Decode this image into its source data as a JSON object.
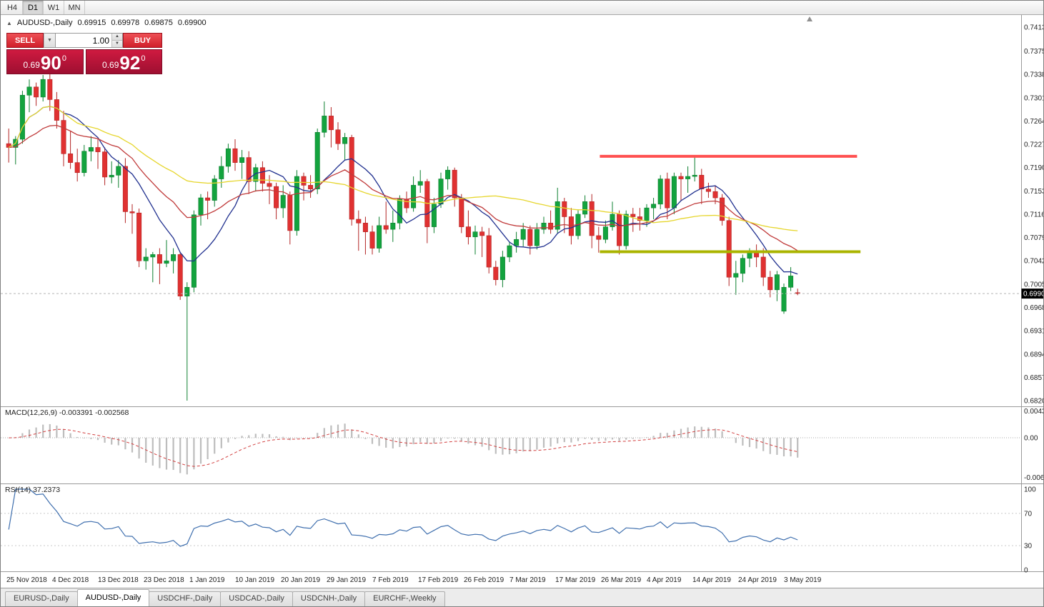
{
  "toolbar": {
    "timeframes": [
      {
        "label": "H4",
        "active": false
      },
      {
        "label": "D1",
        "active": true
      },
      {
        "label": "W1",
        "active": false
      },
      {
        "label": "MN",
        "active": false
      }
    ]
  },
  "chart": {
    "header": {
      "collapse_icon": "▲",
      "symbol_label": "AUDUSD-,Daily",
      "open": "0.69915",
      "high": "0.69978",
      "low": "0.69875",
      "close": "0.69900"
    },
    "trade_panel": {
      "sell_label": "SELL",
      "buy_label": "BUY",
      "volume": "1.00",
      "sell_price": {
        "prefix": "0.69",
        "pips": "90",
        "point": "0"
      },
      "buy_price": {
        "prefix": "0.69",
        "pips": "92",
        "point": "0"
      },
      "accent_color": "#c4163c"
    },
    "current_price": "0.69900"
  },
  "chart_data": {
    "type": "candlestick",
    "symbol": "AUDUSD",
    "timeframe": "Daily",
    "price_axis_labels": [
      "0.74130",
      "0.73750",
      "0.73380",
      "0.73010",
      "0.72640",
      "0.72270",
      "0.71900",
      "0.71530",
      "0.71160",
      "0.70790",
      "0.70420",
      "0.70050",
      "0.69680",
      "0.69310",
      "0.68940",
      "0.68570",
      "0.68200"
    ],
    "date_labels": [
      "25 Nov 2018",
      "4 Dec 2018",
      "13 Dec 2018",
      "23 Dec 2018",
      "1 Jan 2019",
      "10 Jan 2019",
      "20 Jan 2019",
      "29 Jan 2019",
      "7 Feb 2019",
      "17 Feb 2019",
      "26 Feb 2019",
      "7 Mar 2019",
      "17 Mar 2019",
      "26 Mar 2019",
      "4 Apr 2019",
      "14 Apr 2019",
      "24 Apr 2019",
      "3 May 2019"
    ],
    "candles": [
      [
        0.7228,
        0.7252,
        0.7198,
        0.7222
      ],
      [
        0.7222,
        0.724,
        0.7195,
        0.7235
      ],
      [
        0.7235,
        0.7312,
        0.7228,
        0.7305
      ],
      [
        0.7305,
        0.733,
        0.7278,
        0.7318
      ],
      [
        0.7318,
        0.7325,
        0.7288,
        0.7302
      ],
      [
        0.7302,
        0.7337,
        0.7295,
        0.733
      ],
      [
        0.733,
        0.734,
        0.728,
        0.7298
      ],
      [
        0.7298,
        0.731,
        0.7252,
        0.7265
      ],
      [
        0.7265,
        0.728,
        0.7192,
        0.7212
      ],
      [
        0.7212,
        0.7248,
        0.7188,
        0.7198
      ],
      [
        0.7198,
        0.722,
        0.7168,
        0.7182
      ],
      [
        0.7182,
        0.7226,
        0.7176,
        0.7216
      ],
      [
        0.7216,
        0.724,
        0.72,
        0.7222
      ],
      [
        0.7222,
        0.7235,
        0.7188,
        0.7215
      ],
      [
        0.7215,
        0.7222,
        0.7162,
        0.7175
      ],
      [
        0.7175,
        0.72,
        0.7165,
        0.7178
      ],
      [
        0.7178,
        0.7202,
        0.7158,
        0.7192
      ],
      [
        0.7192,
        0.7205,
        0.7102,
        0.712
      ],
      [
        0.712,
        0.7132,
        0.7085,
        0.7118
      ],
      [
        0.7118,
        0.7125,
        0.7032,
        0.7042
      ],
      [
        0.7042,
        0.7062,
        0.7028,
        0.7048
      ],
      [
        0.7048,
        0.7056,
        0.7008,
        0.7052
      ],
      [
        0.7052,
        0.7062,
        0.7005,
        0.7038
      ],
      [
        0.7038,
        0.7075,
        0.7032,
        0.7042
      ],
      [
        0.7042,
        0.7062,
        0.7022,
        0.7052
      ],
      [
        0.7052,
        0.7056,
        0.698,
        0.6986
      ],
      [
        0.6986,
        0.7008,
        0.682,
        0.7
      ],
      [
        0.7,
        0.7122,
        0.6992,
        0.7115
      ],
      [
        0.7115,
        0.7148,
        0.7098,
        0.7142
      ],
      [
        0.7142,
        0.7152,
        0.7108,
        0.7138
      ],
      [
        0.7138,
        0.7178,
        0.7128,
        0.7172
      ],
      [
        0.7172,
        0.7208,
        0.7158,
        0.7192
      ],
      [
        0.7192,
        0.7228,
        0.7182,
        0.722
      ],
      [
        0.722,
        0.7235,
        0.7185,
        0.7198
      ],
      [
        0.7198,
        0.7218,
        0.7172,
        0.7206
      ],
      [
        0.7206,
        0.7216,
        0.7148,
        0.7168
      ],
      [
        0.7168,
        0.7196,
        0.7152,
        0.719
      ],
      [
        0.719,
        0.72,
        0.7152,
        0.7165
      ],
      [
        0.7165,
        0.7178,
        0.7132,
        0.716
      ],
      [
        0.716,
        0.7166,
        0.7108,
        0.7126
      ],
      [
        0.7126,
        0.7162,
        0.711,
        0.7146
      ],
      [
        0.7146,
        0.7152,
        0.7068,
        0.709
      ],
      [
        0.709,
        0.7186,
        0.7082,
        0.7176
      ],
      [
        0.7176,
        0.7182,
        0.7138,
        0.7162
      ],
      [
        0.7162,
        0.7178,
        0.7142,
        0.7156
      ],
      [
        0.7156,
        0.7252,
        0.7148,
        0.7246
      ],
      [
        0.7246,
        0.7295,
        0.7238,
        0.7272
      ],
      [
        0.7272,
        0.7286,
        0.7222,
        0.725
      ],
      [
        0.725,
        0.7262,
        0.7218,
        0.7228
      ],
      [
        0.7228,
        0.7245,
        0.7202,
        0.7238
      ],
      [
        0.7238,
        0.7242,
        0.7098,
        0.7108
      ],
      [
        0.7108,
        0.7122,
        0.7058,
        0.7102
      ],
      [
        0.7102,
        0.7112,
        0.7052,
        0.7088
      ],
      [
        0.7088,
        0.7098,
        0.7052,
        0.7062
      ],
      [
        0.7062,
        0.7112,
        0.7055,
        0.7098
      ],
      [
        0.7098,
        0.7136,
        0.7085,
        0.7092
      ],
      [
        0.7092,
        0.7122,
        0.7072,
        0.7102
      ],
      [
        0.7102,
        0.7146,
        0.7092,
        0.714
      ],
      [
        0.714,
        0.7152,
        0.7118,
        0.7126
      ],
      [
        0.7126,
        0.7176,
        0.712,
        0.7162
      ],
      [
        0.7162,
        0.7186,
        0.715,
        0.7168
      ],
      [
        0.7168,
        0.7172,
        0.707,
        0.7096
      ],
      [
        0.7096,
        0.7142,
        0.7086,
        0.7132
      ],
      [
        0.7132,
        0.7182,
        0.7126,
        0.7172
      ],
      [
        0.7172,
        0.7192,
        0.7155,
        0.7186
      ],
      [
        0.7186,
        0.719,
        0.7128,
        0.7142
      ],
      [
        0.7142,
        0.7148,
        0.7086,
        0.7096
      ],
      [
        0.7096,
        0.7122,
        0.7068,
        0.708
      ],
      [
        0.708,
        0.7098,
        0.7052,
        0.7088
      ],
      [
        0.7088,
        0.7096,
        0.7048,
        0.7082
      ],
      [
        0.7082,
        0.7094,
        0.7022,
        0.7032
      ],
      [
        0.7032,
        0.7042,
        0.7003,
        0.7012
      ],
      [
        0.7012,
        0.7058,
        0.7,
        0.7048
      ],
      [
        0.7048,
        0.7072,
        0.704,
        0.7066
      ],
      [
        0.7066,
        0.7088,
        0.7055,
        0.7076
      ],
      [
        0.7076,
        0.7102,
        0.7065,
        0.7092
      ],
      [
        0.7092,
        0.7098,
        0.7052,
        0.7066
      ],
      [
        0.7066,
        0.7102,
        0.706,
        0.7092
      ],
      [
        0.7092,
        0.7112,
        0.7085,
        0.7102
      ],
      [
        0.7102,
        0.7122,
        0.7085,
        0.7092
      ],
      [
        0.7092,
        0.7158,
        0.7086,
        0.7136
      ],
      [
        0.7136,
        0.7142,
        0.7086,
        0.7112
      ],
      [
        0.7112,
        0.7126,
        0.7068,
        0.7082
      ],
      [
        0.7082,
        0.7122,
        0.7076,
        0.7116
      ],
      [
        0.7116,
        0.7146,
        0.711,
        0.7136
      ],
      [
        0.7136,
        0.7148,
        0.7062,
        0.7082
      ],
      [
        0.7082,
        0.7096,
        0.7055,
        0.7076
      ],
      [
        0.7076,
        0.7106,
        0.707,
        0.7096
      ],
      [
        0.7096,
        0.7136,
        0.709,
        0.7116
      ],
      [
        0.7116,
        0.7122,
        0.7052,
        0.7066
      ],
      [
        0.7066,
        0.7122,
        0.706,
        0.7116
      ],
      [
        0.7116,
        0.7126,
        0.7088,
        0.7112
      ],
      [
        0.7112,
        0.7126,
        0.709,
        0.7106
      ],
      [
        0.7106,
        0.7132,
        0.7096,
        0.7126
      ],
      [
        0.7126,
        0.7142,
        0.7108,
        0.7132
      ],
      [
        0.7132,
        0.7178,
        0.7124,
        0.7172
      ],
      [
        0.7172,
        0.7182,
        0.7108,
        0.7126
      ],
      [
        0.7126,
        0.7182,
        0.7116,
        0.7176
      ],
      [
        0.7176,
        0.7182,
        0.7138,
        0.7172
      ],
      [
        0.7172,
        0.7192,
        0.715,
        0.7176
      ],
      [
        0.7176,
        0.7207,
        0.7168,
        0.7178
      ],
      [
        0.7178,
        0.7188,
        0.7132,
        0.7156
      ],
      [
        0.7156,
        0.7166,
        0.7142,
        0.7152
      ],
      [
        0.7152,
        0.7162,
        0.7132,
        0.7142
      ],
      [
        0.7142,
        0.7148,
        0.7098,
        0.7106
      ],
      [
        0.7106,
        0.7112,
        0.7002,
        0.7016
      ],
      [
        0.7016,
        0.7042,
        0.6988,
        0.7022
      ],
      [
        0.7022,
        0.7052,
        0.7008,
        0.7046
      ],
      [
        0.7046,
        0.7062,
        0.7032,
        0.7056
      ],
      [
        0.7056,
        0.7068,
        0.7032,
        0.7048
      ],
      [
        0.7048,
        0.7062,
        0.7002,
        0.7016
      ],
      [
        0.7016,
        0.7026,
        0.6984,
        0.6996
      ],
      [
        0.6996,
        0.7026,
        0.6978,
        0.702
      ],
      [
        0.6962,
        0.7006,
        0.6958,
        0.7
      ],
      [
        0.7,
        0.7032,
        0.6994,
        0.7018
      ],
      [
        0.69915,
        0.69978,
        0.69875,
        0.699
      ]
    ],
    "colors": {
      "up": "#13a33e",
      "down": "#e03131",
      "up_stroke": "#0e8030",
      "down_stroke": "#b32424"
    },
    "overlays": [
      {
        "name": "ma-fast",
        "type": "sma",
        "period": 9,
        "color": "#20308f"
      },
      {
        "name": "ma-mid",
        "type": "ema",
        "period": 21,
        "color": "#c03a3a"
      },
      {
        "name": "ma-slow",
        "type": "sma",
        "period": 45,
        "color": "#e6d62e"
      }
    ],
    "hlines": [
      {
        "name": "resistance-line",
        "price": 0.7208,
        "from_index": 86.5,
        "to_index": 124,
        "color": "#ff5050",
        "width": 4
      },
      {
        "name": "support-line",
        "price": 0.70565,
        "from_index": 86.5,
        "to_index": 124.5,
        "color": "#aab400",
        "width": 4
      }
    ],
    "macd": {
      "label": "MACD(12,26,9)",
      "main_value": "-0.003391",
      "signal_value": "-0.002568",
      "fast": 12,
      "slow": 26,
      "signal": 9,
      "axis_labels": [
        {
          "text": "0.004331",
          "value": 0.004331
        },
        {
          "text": "0.00",
          "value": 0
        },
        {
          "text": "-0.006377",
          "value": -0.006377
        }
      ],
      "hist_color": "#bdbdbd",
      "signal_color": "#d23f3f"
    },
    "rsi": {
      "label": "RSI(14)",
      "value": "37.2373",
      "period": 14,
      "axis_labels": [
        {
          "text": "100",
          "value": 100
        },
        {
          "text": "70",
          "value": 70
        },
        {
          "text": "30",
          "value": 30
        },
        {
          "text": "0",
          "value": 0
        }
      ],
      "levels": [
        70,
        30
      ],
      "color": "#3f6fae"
    }
  },
  "tabs": [
    {
      "label": "EURUSD-,Daily",
      "active": false
    },
    {
      "label": "AUDUSD-,Daily",
      "active": true
    },
    {
      "label": "USDCHF-,Daily",
      "active": false
    },
    {
      "label": "USDCAD-,Daily",
      "active": false
    },
    {
      "label": "USDCNH-,Daily",
      "active": false
    },
    {
      "label": "EURCHF-,Weekly",
      "active": false
    }
  ]
}
